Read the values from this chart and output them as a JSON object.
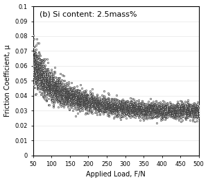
{
  "title": "(b) Si content: 2.5mass%",
  "xlabel": "Applied Load, F/N",
  "ylabel": "Friction Coefficient, μ",
  "xlim": [
    50,
    500
  ],
  "ylim": [
    0,
    0.1
  ],
  "xticks": [
    50,
    100,
    150,
    200,
    250,
    300,
    350,
    400,
    450,
    500
  ],
  "yticks": [
    0,
    0.01,
    0.02,
    0.03,
    0.04,
    0.05,
    0.06,
    0.07,
    0.08,
    0.09,
    0.1
  ],
  "background_color": "#ffffff",
  "marker_color": "#000000",
  "marker_face": "#ffffff",
  "marker_size": 2.8,
  "seed": 42
}
